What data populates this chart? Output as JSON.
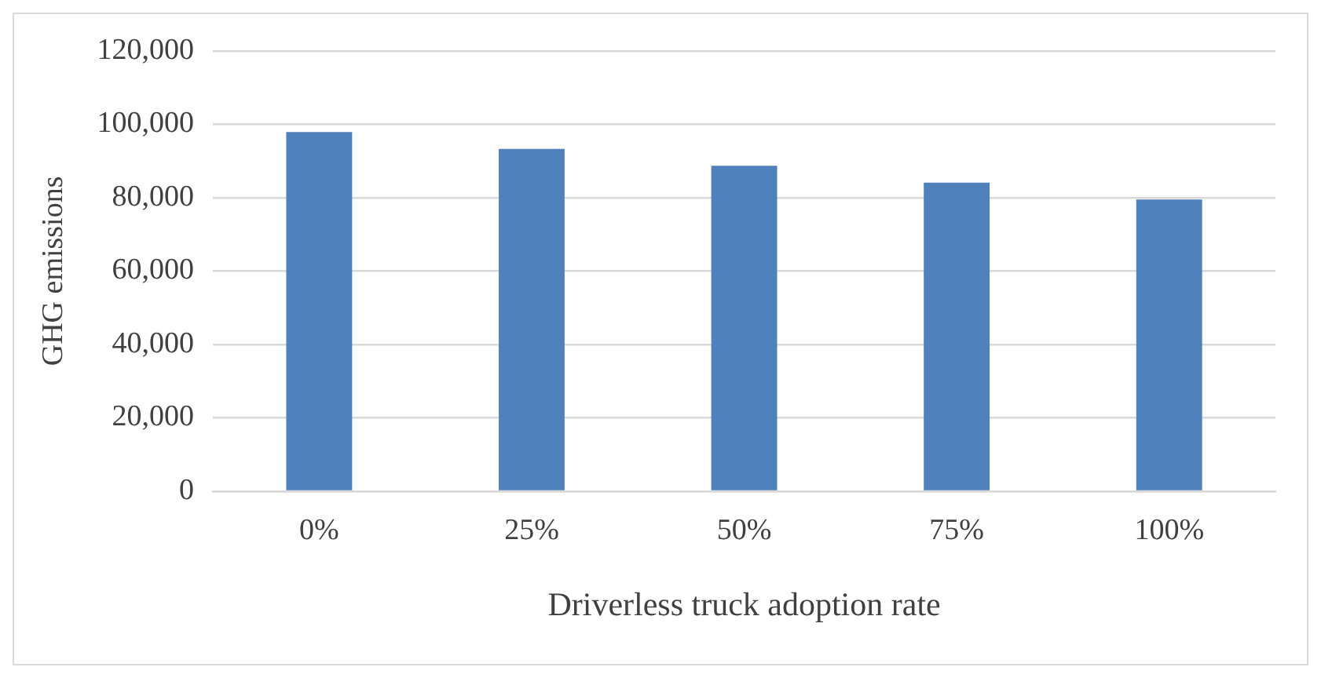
{
  "chart_data": {
    "type": "bar",
    "xlabel": "Driverless truck adoption rate",
    "ylabel": "GHG emissions",
    "categories": [
      "0%",
      "25%",
      "50%",
      "75%",
      "100%"
    ],
    "values": [
      97900,
      93300,
      88700,
      84100,
      79500
    ],
    "color": "#4f81bd",
    "ylim": [
      0,
      120000
    ],
    "yticks": [
      0,
      {
        "value": 20000,
        "label": "20,000"
      },
      {
        "value": 40000,
        "label": "40,000"
      },
      {
        "value": 60000,
        "label": "60,000"
      },
      {
        "value": 80000,
        "label": "80,000"
      },
      {
        "value": 100000,
        "label": "100,000"
      },
      {
        "value": 120000,
        "label": "120,000"
      }
    ],
    "grid": "y",
    "legend": false
  }
}
